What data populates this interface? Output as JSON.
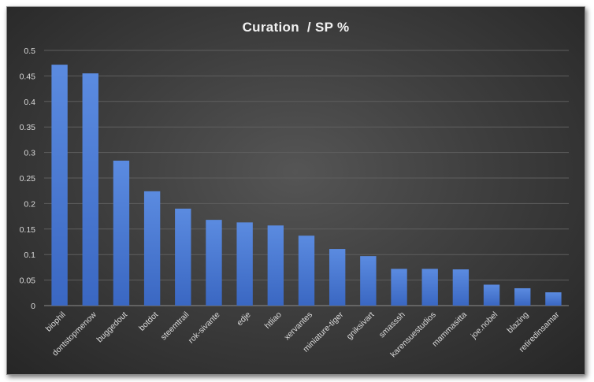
{
  "chart_data": {
    "type": "bar",
    "title": "Curation  / SP %",
    "xlabel": "",
    "ylabel": "",
    "ylim": [
      0,
      0.5
    ],
    "yticks": [
      "0",
      "0.05",
      "0.1",
      "0.15",
      "0.2",
      "0.25",
      "0.3",
      "0.35",
      "0.4",
      "0.45",
      "0.5"
    ],
    "grid": true,
    "legend": "none",
    "bar_color": "#4f7fd4",
    "categories": [
      "biophil",
      "dontstopmenow",
      "buggedout",
      "botdot",
      "steemtrail",
      "rok-sivante",
      "edje",
      "htliao",
      "xervantes",
      "miniature-tiger",
      "gniksivart",
      "smasssh",
      "karensuestudios",
      "mammasitta",
      "joe.nobel",
      "blazing",
      "retiredinsamar"
    ],
    "values": [
      0.472,
      0.455,
      0.284,
      0.224,
      0.19,
      0.168,
      0.163,
      0.157,
      0.137,
      0.111,
      0.097,
      0.072,
      0.072,
      0.071,
      0.041,
      0.034,
      0.026
    ]
  }
}
